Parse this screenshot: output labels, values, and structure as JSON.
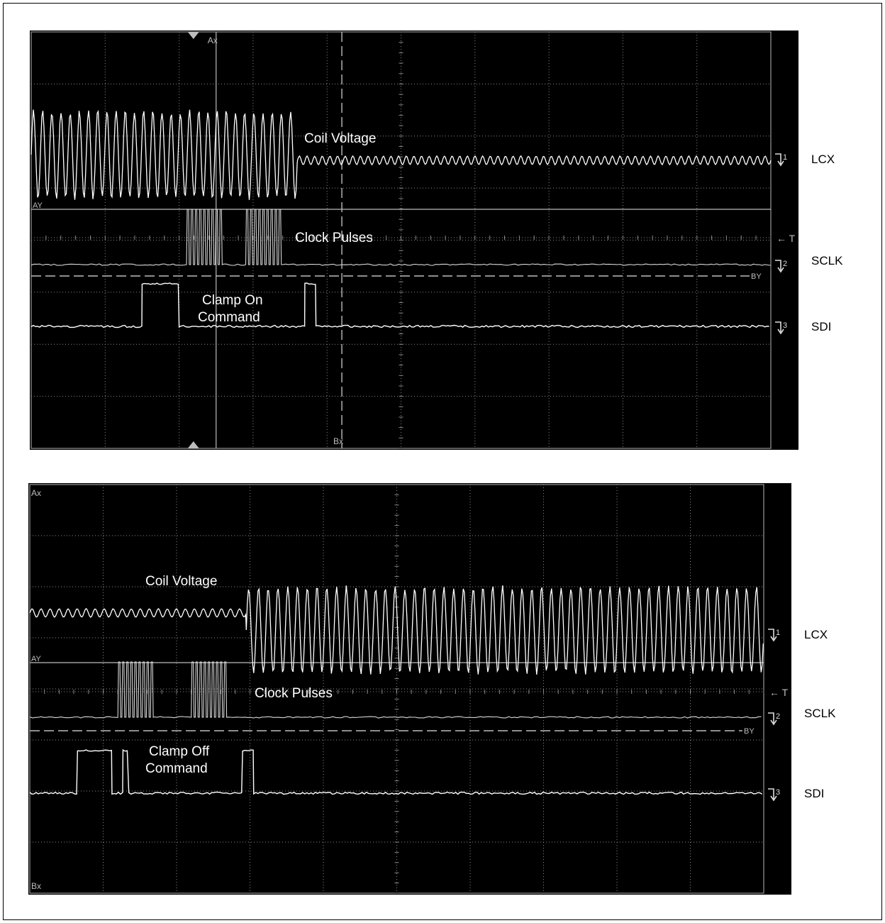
{
  "page": {
    "border_color": "#000000",
    "background": "#ffffff"
  },
  "scope_colors": {
    "screen": "#000000",
    "trace": "#ffffff",
    "grid": "#8a8a8a",
    "border": "#9a9a9a",
    "annotation": "#ffffff",
    "side_label": "#000000"
  },
  "chart_data": [
    {
      "type": "line",
      "title": "",
      "grid": true,
      "grid_divisions": {
        "x": 10,
        "y": 8
      },
      "screen_markers": {
        "ax": "Ax",
        "bx": "Bx",
        "ay": "AY",
        "by": "BY",
        "trigger": "← T"
      },
      "channel_markers": [
        "1",
        "2",
        "3"
      ],
      "channel_labels": [
        "LCX",
        "SCLK",
        "SDI"
      ],
      "annotations": [
        "Coil Voltage",
        "Clock Pulses",
        "Clamp On",
        "Command"
      ],
      "series": [
        {
          "name": "LCX",
          "description": "coil voltage",
          "segments": [
            {
              "from_div": 0.0,
              "to_div": 3.6,
              "cycles": 29,
              "amplitude_div": 1.75
            },
            {
              "from_div": 3.6,
              "to_div": 10.0,
              "cycles": 62,
              "amplitude_div": 0.17
            }
          ]
        },
        {
          "name": "SCLK",
          "description": "clock pulses",
          "bursts": [
            {
              "from_div": 2.1,
              "to_div": 2.6,
              "pulses": 9
            },
            {
              "from_div": 2.9,
              "to_div": 3.4,
              "pulses": 9
            }
          ]
        },
        {
          "name": "SDI",
          "description": "command data",
          "high_intervals": [
            [
              1.5,
              2.0
            ],
            [
              3.7,
              3.85
            ]
          ]
        }
      ],
      "cursors": {
        "ax_div": 2.5,
        "bx_div": 4.2
      }
    },
    {
      "type": "line",
      "title": "",
      "grid": true,
      "grid_divisions": {
        "x": 10,
        "y": 8
      },
      "screen_markers": {
        "ax": "Ax",
        "bx": "Bx",
        "ay": "AY",
        "by": "BY",
        "trigger": "← T"
      },
      "channel_markers": [
        "1",
        "2",
        "3"
      ],
      "channel_labels": [
        "LCX",
        "SCLK",
        "SDI"
      ],
      "annotations": [
        "Coil Voltage",
        "Clock Pulses",
        "Clamp Off",
        "Command"
      ],
      "series": [
        {
          "name": "LCX",
          "description": "coil voltage",
          "segments": [
            {
              "from_div": 0.0,
              "to_div": 2.95,
              "cycles": 24,
              "amplitude_div": 0.17
            },
            {
              "from_div": 2.95,
              "to_div": 10.0,
              "cycles": 53,
              "amplitude_div": 1.75
            }
          ]
        },
        {
          "name": "SCLK",
          "description": "clock pulses",
          "bursts": [
            {
              "from_div": 1.2,
              "to_div": 1.7,
              "pulses": 9
            },
            {
              "from_div": 2.2,
              "to_div": 2.7,
              "pulses": 9
            }
          ]
        },
        {
          "name": "SDI",
          "description": "command data",
          "high_intervals": [
            [
              0.65,
              1.12
            ],
            [
              1.27,
              1.35
            ],
            [
              2.9,
              3.05
            ]
          ]
        }
      ],
      "cursors": {}
    }
  ]
}
